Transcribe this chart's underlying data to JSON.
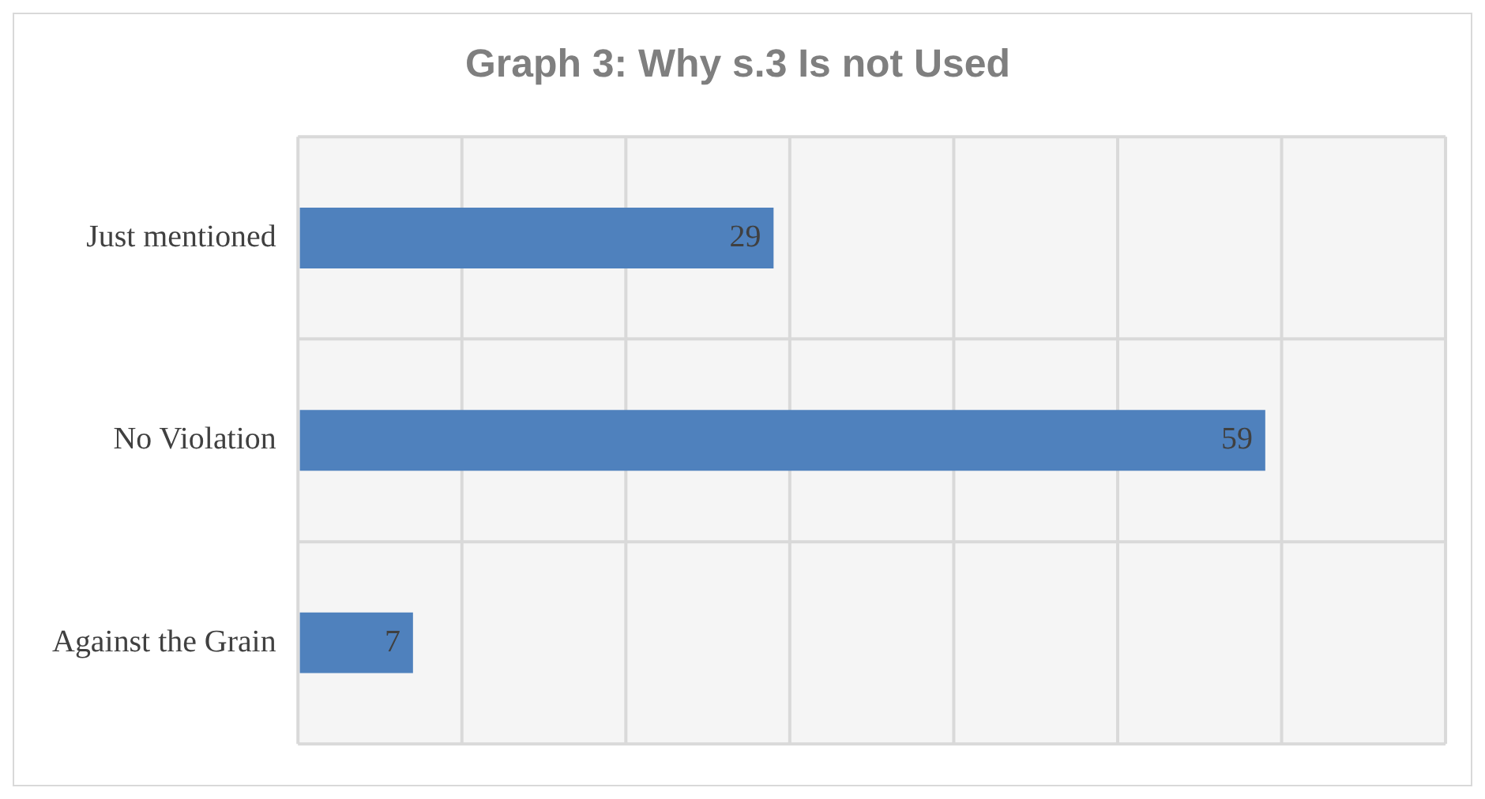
{
  "chart_data": {
    "type": "bar",
    "orientation": "horizontal",
    "title": "Graph 3: Why s.3 Is not Used",
    "categories": [
      "Just mentioned",
      "No Violation",
      "Against the Grain"
    ],
    "values": [
      29,
      59,
      7
    ],
    "color": "#4f81bd",
    "xlim": [
      0,
      70
    ],
    "xticks": [
      {
        "value": 0,
        "label": null
      },
      {
        "value": 10,
        "label": null
      },
      {
        "value": 20,
        "label": null
      },
      {
        "value": 30,
        "label": null
      },
      {
        "value": 40,
        "label": null
      },
      {
        "value": 50,
        "label": null
      },
      {
        "value": 60,
        "label": null
      },
      {
        "value": 70,
        "label": null
      }
    ],
    "tick_labels": "y",
    "grid": true,
    "data_labels": true,
    "legend": false
  }
}
